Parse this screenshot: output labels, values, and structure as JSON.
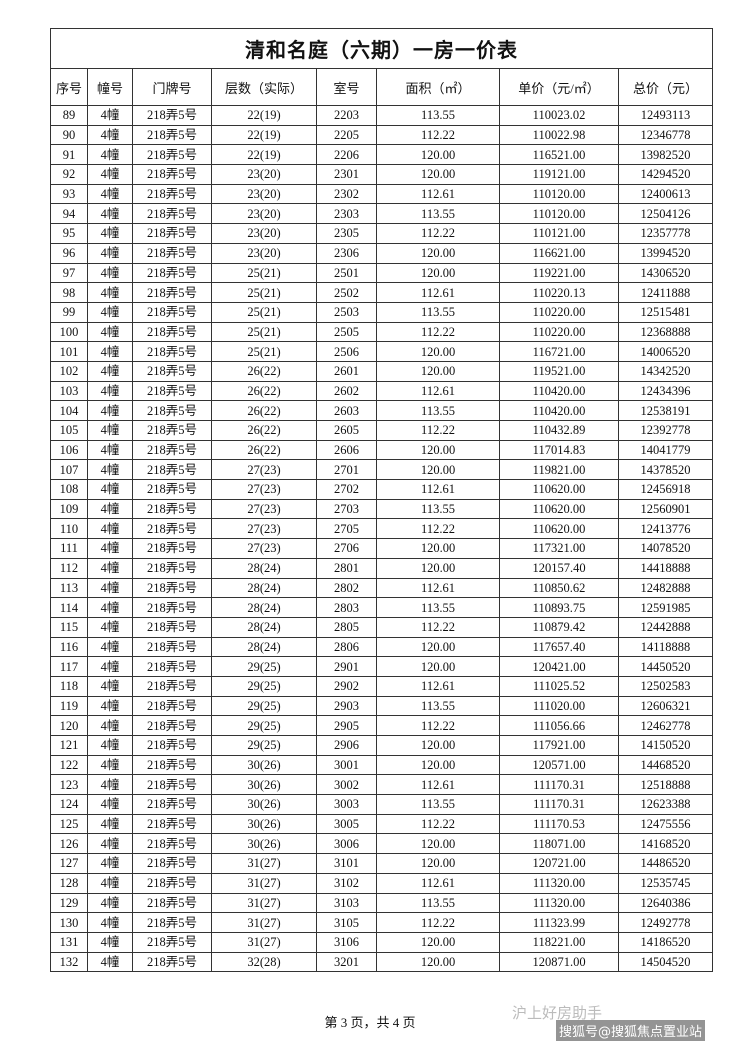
{
  "header": {
    "title": "清和名庭（六期）一房一价表"
  },
  "table": {
    "columns": [
      "序号",
      "幢号",
      "门牌号",
      "层数（实际）",
      "室号",
      "面积（㎡）",
      "单价（元/㎡）",
      "总价（元）"
    ],
    "rows": [
      [
        "89",
        "4幢",
        "218弄5号",
        "22(19)",
        "2203",
        "113.55",
        "110023.02",
        "12493113"
      ],
      [
        "90",
        "4幢",
        "218弄5号",
        "22(19)",
        "2205",
        "112.22",
        "110022.98",
        "12346778"
      ],
      [
        "91",
        "4幢",
        "218弄5号",
        "22(19)",
        "2206",
        "120.00",
        "116521.00",
        "13982520"
      ],
      [
        "92",
        "4幢",
        "218弄5号",
        "23(20)",
        "2301",
        "120.00",
        "119121.00",
        "14294520"
      ],
      [
        "93",
        "4幢",
        "218弄5号",
        "23(20)",
        "2302",
        "112.61",
        "110120.00",
        "12400613"
      ],
      [
        "94",
        "4幢",
        "218弄5号",
        "23(20)",
        "2303",
        "113.55",
        "110120.00",
        "12504126"
      ],
      [
        "95",
        "4幢",
        "218弄5号",
        "23(20)",
        "2305",
        "112.22",
        "110121.00",
        "12357778"
      ],
      [
        "96",
        "4幢",
        "218弄5号",
        "23(20)",
        "2306",
        "120.00",
        "116621.00",
        "13994520"
      ],
      [
        "97",
        "4幢",
        "218弄5号",
        "25(21)",
        "2501",
        "120.00",
        "119221.00",
        "14306520"
      ],
      [
        "98",
        "4幢",
        "218弄5号",
        "25(21)",
        "2502",
        "112.61",
        "110220.13",
        "12411888"
      ],
      [
        "99",
        "4幢",
        "218弄5号",
        "25(21)",
        "2503",
        "113.55",
        "110220.00",
        "12515481"
      ],
      [
        "100",
        "4幢",
        "218弄5号",
        "25(21)",
        "2505",
        "112.22",
        "110220.00",
        "12368888"
      ],
      [
        "101",
        "4幢",
        "218弄5号",
        "25(21)",
        "2506",
        "120.00",
        "116721.00",
        "14006520"
      ],
      [
        "102",
        "4幢",
        "218弄5号",
        "26(22)",
        "2601",
        "120.00",
        "119521.00",
        "14342520"
      ],
      [
        "103",
        "4幢",
        "218弄5号",
        "26(22)",
        "2602",
        "112.61",
        "110420.00",
        "12434396"
      ],
      [
        "104",
        "4幢",
        "218弄5号",
        "26(22)",
        "2603",
        "113.55",
        "110420.00",
        "12538191"
      ],
      [
        "105",
        "4幢",
        "218弄5号",
        "26(22)",
        "2605",
        "112.22",
        "110432.89",
        "12392778"
      ],
      [
        "106",
        "4幢",
        "218弄5号",
        "26(22)",
        "2606",
        "120.00",
        "117014.83",
        "14041779"
      ],
      [
        "107",
        "4幢",
        "218弄5号",
        "27(23)",
        "2701",
        "120.00",
        "119821.00",
        "14378520"
      ],
      [
        "108",
        "4幢",
        "218弄5号",
        "27(23)",
        "2702",
        "112.61",
        "110620.00",
        "12456918"
      ],
      [
        "109",
        "4幢",
        "218弄5号",
        "27(23)",
        "2703",
        "113.55",
        "110620.00",
        "12560901"
      ],
      [
        "110",
        "4幢",
        "218弄5号",
        "27(23)",
        "2705",
        "112.22",
        "110620.00",
        "12413776"
      ],
      [
        "111",
        "4幢",
        "218弄5号",
        "27(23)",
        "2706",
        "120.00",
        "117321.00",
        "14078520"
      ],
      [
        "112",
        "4幢",
        "218弄5号",
        "28(24)",
        "2801",
        "120.00",
        "120157.40",
        "14418888"
      ],
      [
        "113",
        "4幢",
        "218弄5号",
        "28(24)",
        "2802",
        "112.61",
        "110850.62",
        "12482888"
      ],
      [
        "114",
        "4幢",
        "218弄5号",
        "28(24)",
        "2803",
        "113.55",
        "110893.75",
        "12591985"
      ],
      [
        "115",
        "4幢",
        "218弄5号",
        "28(24)",
        "2805",
        "112.22",
        "110879.42",
        "12442888"
      ],
      [
        "116",
        "4幢",
        "218弄5号",
        "28(24)",
        "2806",
        "120.00",
        "117657.40",
        "14118888"
      ],
      [
        "117",
        "4幢",
        "218弄5号",
        "29(25)",
        "2901",
        "120.00",
        "120421.00",
        "14450520"
      ],
      [
        "118",
        "4幢",
        "218弄5号",
        "29(25)",
        "2902",
        "112.61",
        "111025.52",
        "12502583"
      ],
      [
        "119",
        "4幢",
        "218弄5号",
        "29(25)",
        "2903",
        "113.55",
        "111020.00",
        "12606321"
      ],
      [
        "120",
        "4幢",
        "218弄5号",
        "29(25)",
        "2905",
        "112.22",
        "111056.66",
        "12462778"
      ],
      [
        "121",
        "4幢",
        "218弄5号",
        "29(25)",
        "2906",
        "120.00",
        "117921.00",
        "14150520"
      ],
      [
        "122",
        "4幢",
        "218弄5号",
        "30(26)",
        "3001",
        "120.00",
        "120571.00",
        "14468520"
      ],
      [
        "123",
        "4幢",
        "218弄5号",
        "30(26)",
        "3002",
        "112.61",
        "111170.31",
        "12518888"
      ],
      [
        "124",
        "4幢",
        "218弄5号",
        "30(26)",
        "3003",
        "113.55",
        "111170.31",
        "12623388"
      ],
      [
        "125",
        "4幢",
        "218弄5号",
        "30(26)",
        "3005",
        "112.22",
        "111170.53",
        "12475556"
      ],
      [
        "126",
        "4幢",
        "218弄5号",
        "30(26)",
        "3006",
        "120.00",
        "118071.00",
        "14168520"
      ],
      [
        "127",
        "4幢",
        "218弄5号",
        "31(27)",
        "3101",
        "120.00",
        "120721.00",
        "14486520"
      ],
      [
        "128",
        "4幢",
        "218弄5号",
        "31(27)",
        "3102",
        "112.61",
        "111320.00",
        "12535745"
      ],
      [
        "129",
        "4幢",
        "218弄5号",
        "31(27)",
        "3103",
        "113.55",
        "111320.00",
        "12640386"
      ],
      [
        "130",
        "4幢",
        "218弄5号",
        "31(27)",
        "3105",
        "112.22",
        "111323.99",
        "12492778"
      ],
      [
        "131",
        "4幢",
        "218弄5号",
        "31(27)",
        "3106",
        "120.00",
        "118221.00",
        "14186520"
      ],
      [
        "132",
        "4幢",
        "218弄5号",
        "32(28)",
        "3201",
        "120.00",
        "120871.00",
        "14504520"
      ]
    ]
  },
  "footer": {
    "page": "第 3 页，共 4 页"
  },
  "watermark": {
    "account": "沪上好房助手",
    "source": "搜狐号@搜狐焦点置业站"
  }
}
